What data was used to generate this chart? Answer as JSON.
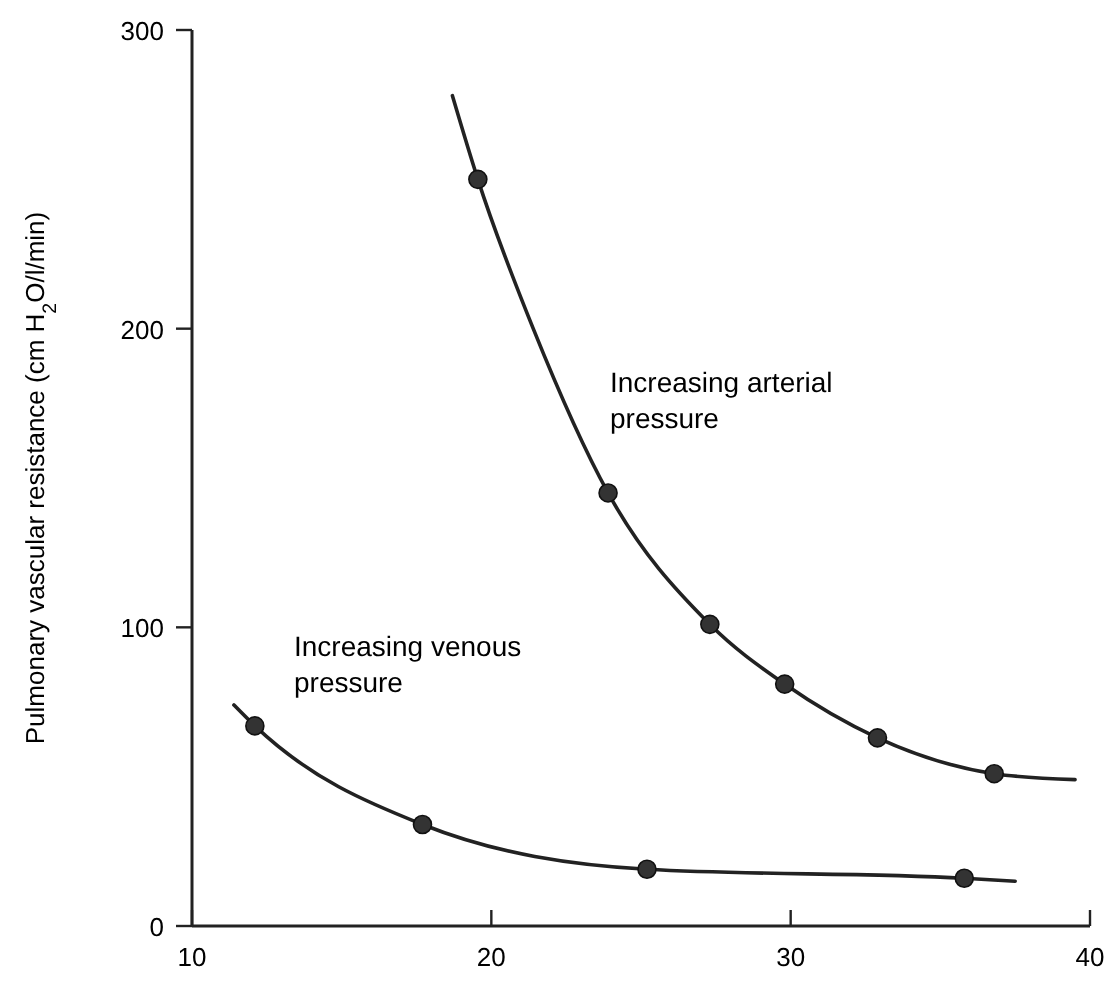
{
  "chart_data": {
    "type": "scatter",
    "ylabel": "Pulmonary vascular resistance (cm H$_{2}$O/l/min)",
    "xlim": [
      10,
      40
    ],
    "ylim": [
      0,
      300
    ],
    "xticks": [
      10,
      20,
      30,
      40
    ],
    "yticks": [
      0,
      100,
      200,
      300
    ],
    "grid": false,
    "series": [
      {
        "type": "line",
        "color": "#222222",
        "marker": "none",
        "x": [
          18.7,
          19.55,
          21.4,
          23.9,
          27.3,
          29.8,
          32.9,
          36.8,
          39.5
        ],
        "values": [
          278,
          250,
          200,
          145,
          101,
          81,
          63,
          51,
          49
        ]
      },
      {
        "type": "line",
        "color": "#222222",
        "marker": "none",
        "x": [
          11.4,
          12.1,
          17.7,
          25.2,
          35.8,
          37.5
        ],
        "values": [
          74,
          67,
          34,
          19,
          16,
          15
        ]
      },
      {
        "color": "#333333",
        "marker": "circle",
        "x": [
          19.55,
          23.9,
          27.3,
          29.8,
          32.9,
          36.8
        ],
        "values": [
          250,
          145,
          101,
          81,
          63,
          51
        ]
      },
      {
        "color": "#333333",
        "marker": "circle",
        "x": [
          12.1,
          17.7,
          25.2,
          35.8
        ],
        "values": [
          67,
          34,
          19,
          16
        ]
      }
    ],
    "annotations": [
      "Increasing arterial\npressure",
      "Increasing venous\npressure"
    ]
  }
}
